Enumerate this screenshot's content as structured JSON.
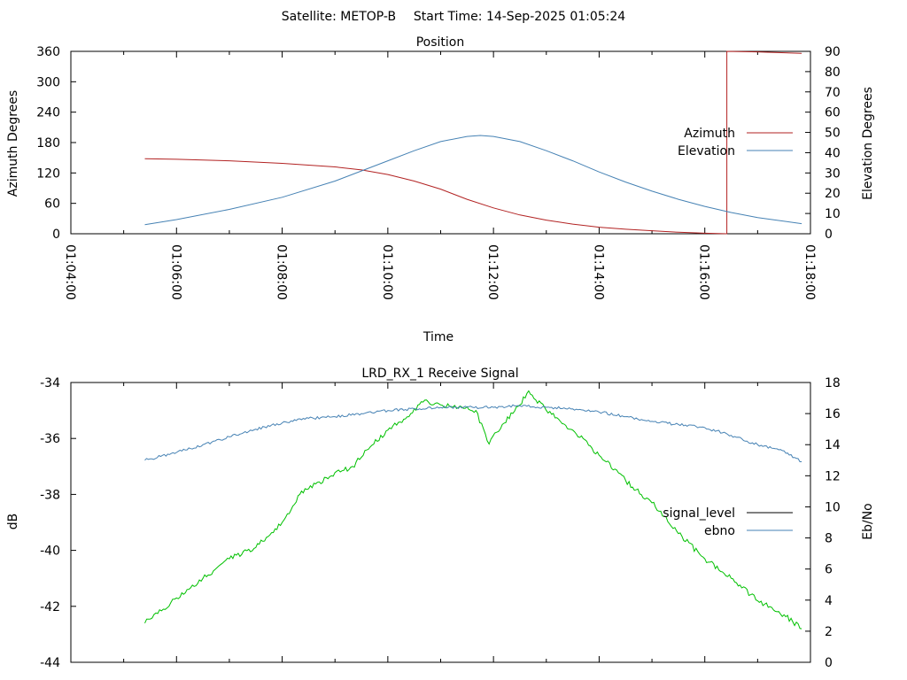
{
  "header": {
    "satellite": "Satellite: METOP-B",
    "start_time": "Start Time: 14-Sep-2025 01:05:24"
  },
  "chart_data": [
    {
      "type": "line",
      "title": "Position",
      "xlabel": "Time",
      "ylabel": "Azimuth Degrees",
      "y2label": "Elevation Degrees",
      "xlim": [
        "01:04:00",
        "01:18:00"
      ],
      "xticks": [
        "01:04:00",
        "01:06:00",
        "01:08:00",
        "01:10:00",
        "01:12:00",
        "01:14:00",
        "01:16:00",
        "01:18:00"
      ],
      "ylim": [
        0,
        360
      ],
      "yticks": [
        0,
        60,
        120,
        180,
        240,
        300,
        360
      ],
      "y2lim": [
        0,
        90
      ],
      "y2ticks": [
        0,
        10,
        20,
        30,
        40,
        50,
        60,
        70,
        80,
        90
      ],
      "legend_position": "right",
      "series": [
        {
          "name": "Azimuth",
          "axis": "left",
          "color": "#b22222",
          "points": [
            [
              "01:05:24",
              148
            ],
            [
              "01:06:00",
              147
            ],
            [
              "01:07:00",
              144
            ],
            [
              "01:08:00",
              139
            ],
            [
              "01:09:00",
              132
            ],
            [
              "01:09:30",
              126
            ],
            [
              "01:10:00",
              117
            ],
            [
              "01:10:30",
              104
            ],
            [
              "01:11:00",
              88
            ],
            [
              "01:11:30",
              68
            ],
            [
              "01:12:00",
              51
            ],
            [
              "01:12:30",
              37
            ],
            [
              "01:13:00",
              27
            ],
            [
              "01:13:30",
              19
            ],
            [
              "01:14:00",
              13
            ],
            [
              "01:14:30",
              9
            ],
            [
              "01:15:00",
              6
            ],
            [
              "01:15:30",
              3
            ],
            [
              "01:16:00",
              1
            ],
            [
              "01:16:25",
              0
            ],
            [
              "01:16:25",
              360
            ],
            [
              "01:17:00",
              359
            ],
            [
              "01:17:50",
              356
            ]
          ]
        },
        {
          "name": "Elevation",
          "axis": "right",
          "color": "#4682b4",
          "points": [
            [
              "01:05:24",
              4.5
            ],
            [
              "01:06:00",
              7
            ],
            [
              "01:07:00",
              12
            ],
            [
              "01:08:00",
              18
            ],
            [
              "01:09:00",
              26
            ],
            [
              "01:10:00",
              36
            ],
            [
              "01:10:30",
              41
            ],
            [
              "01:11:00",
              45.5
            ],
            [
              "01:11:30",
              48
            ],
            [
              "01:11:45",
              48.5
            ],
            [
              "01:12:00",
              48
            ],
            [
              "01:12:30",
              45.5
            ],
            [
              "01:13:00",
              41
            ],
            [
              "01:13:30",
              36
            ],
            [
              "01:14:00",
              30.5
            ],
            [
              "01:14:30",
              25.5
            ],
            [
              "01:15:00",
              21
            ],
            [
              "01:15:30",
              17
            ],
            [
              "01:16:00",
              13.5
            ],
            [
              "01:16:30",
              10.5
            ],
            [
              "01:17:00",
              8
            ],
            [
              "01:17:50",
              5
            ]
          ]
        }
      ]
    },
    {
      "type": "line",
      "title": "LRD_RX_1 Receive Signal",
      "ylabel": "dB",
      "y2label": "Eb/No",
      "xlim": [
        "01:04:00",
        "01:18:00"
      ],
      "ylim": [
        -44,
        -34
      ],
      "yticks": [
        -44,
        -42,
        -40,
        -38,
        -36,
        -34
      ],
      "y2lim": [
        0,
        18
      ],
      "y2ticks": [
        0,
        2,
        4,
        6,
        8,
        10,
        12,
        14,
        16,
        18
      ],
      "legend_position": "right",
      "series": [
        {
          "name": "signal_level",
          "axis": "left",
          "color": "#00c000",
          "legend_color": "#000000",
          "points": [
            [
              "01:05:24",
              -42.6
            ],
            [
              "01:05:45",
              -42.1
            ],
            [
              "01:06:00",
              -41.7
            ],
            [
              "01:06:30",
              -41.0
            ],
            [
              "01:07:00",
              -40.3
            ],
            [
              "01:07:30",
              -39.9
            ],
            [
              "01:08:00",
              -39.0
            ],
            [
              "01:08:20",
              -38.0
            ],
            [
              "01:08:50",
              -37.4
            ],
            [
              "01:09:20",
              -37.0
            ],
            [
              "01:09:40",
              -36.3
            ],
            [
              "01:10:00",
              -35.7
            ],
            [
              "01:10:20",
              -35.3
            ],
            [
              "01:10:40",
              -34.7
            ],
            [
              "01:11:00",
              -34.8
            ],
            [
              "01:11:20",
              -34.9
            ],
            [
              "01:11:40",
              -35.0
            ],
            [
              "01:11:55",
              -36.2
            ],
            [
              "01:12:10",
              -35.5
            ],
            [
              "01:12:30",
              -34.8
            ],
            [
              "01:12:40",
              -34.3
            ],
            [
              "01:13:00",
              -35.0
            ],
            [
              "01:13:30",
              -35.7
            ],
            [
              "01:14:00",
              -36.6
            ],
            [
              "01:14:30",
              -37.5
            ],
            [
              "01:15:00",
              -38.3
            ],
            [
              "01:15:30",
              -39.4
            ],
            [
              "01:16:00",
              -40.3
            ],
            [
              "01:16:30",
              -41.0
            ],
            [
              "01:17:00",
              -41.8
            ],
            [
              "01:17:30",
              -42.3
            ],
            [
              "01:17:50",
              -42.8
            ]
          ]
        },
        {
          "name": "ebno",
          "axis": "right",
          "color": "#4682b4",
          "points": [
            [
              "01:05:24",
              13.0
            ],
            [
              "01:06:00",
              13.5
            ],
            [
              "01:06:30",
              14.0
            ],
            [
              "01:07:00",
              14.5
            ],
            [
              "01:07:30",
              15.0
            ],
            [
              "01:08:00",
              15.4
            ],
            [
              "01:08:30",
              15.7
            ],
            [
              "01:09:00",
              15.8
            ],
            [
              "01:09:30",
              16.0
            ],
            [
              "01:10:00",
              16.2
            ],
            [
              "01:10:30",
              16.3
            ],
            [
              "01:11:00",
              16.4
            ],
            [
              "01:11:30",
              16.4
            ],
            [
              "01:12:00",
              16.4
            ],
            [
              "01:12:30",
              16.5
            ],
            [
              "01:13:00",
              16.4
            ],
            [
              "01:13:30",
              16.3
            ],
            [
              "01:14:00",
              16.1
            ],
            [
              "01:14:30",
              15.8
            ],
            [
              "01:15:00",
              15.5
            ],
            [
              "01:15:30",
              15.3
            ],
            [
              "01:16:00",
              15.1
            ],
            [
              "01:16:30",
              14.6
            ],
            [
              "01:17:00",
              14.0
            ],
            [
              "01:17:30",
              13.6
            ],
            [
              "01:17:50",
              12.9
            ]
          ]
        }
      ]
    }
  ]
}
